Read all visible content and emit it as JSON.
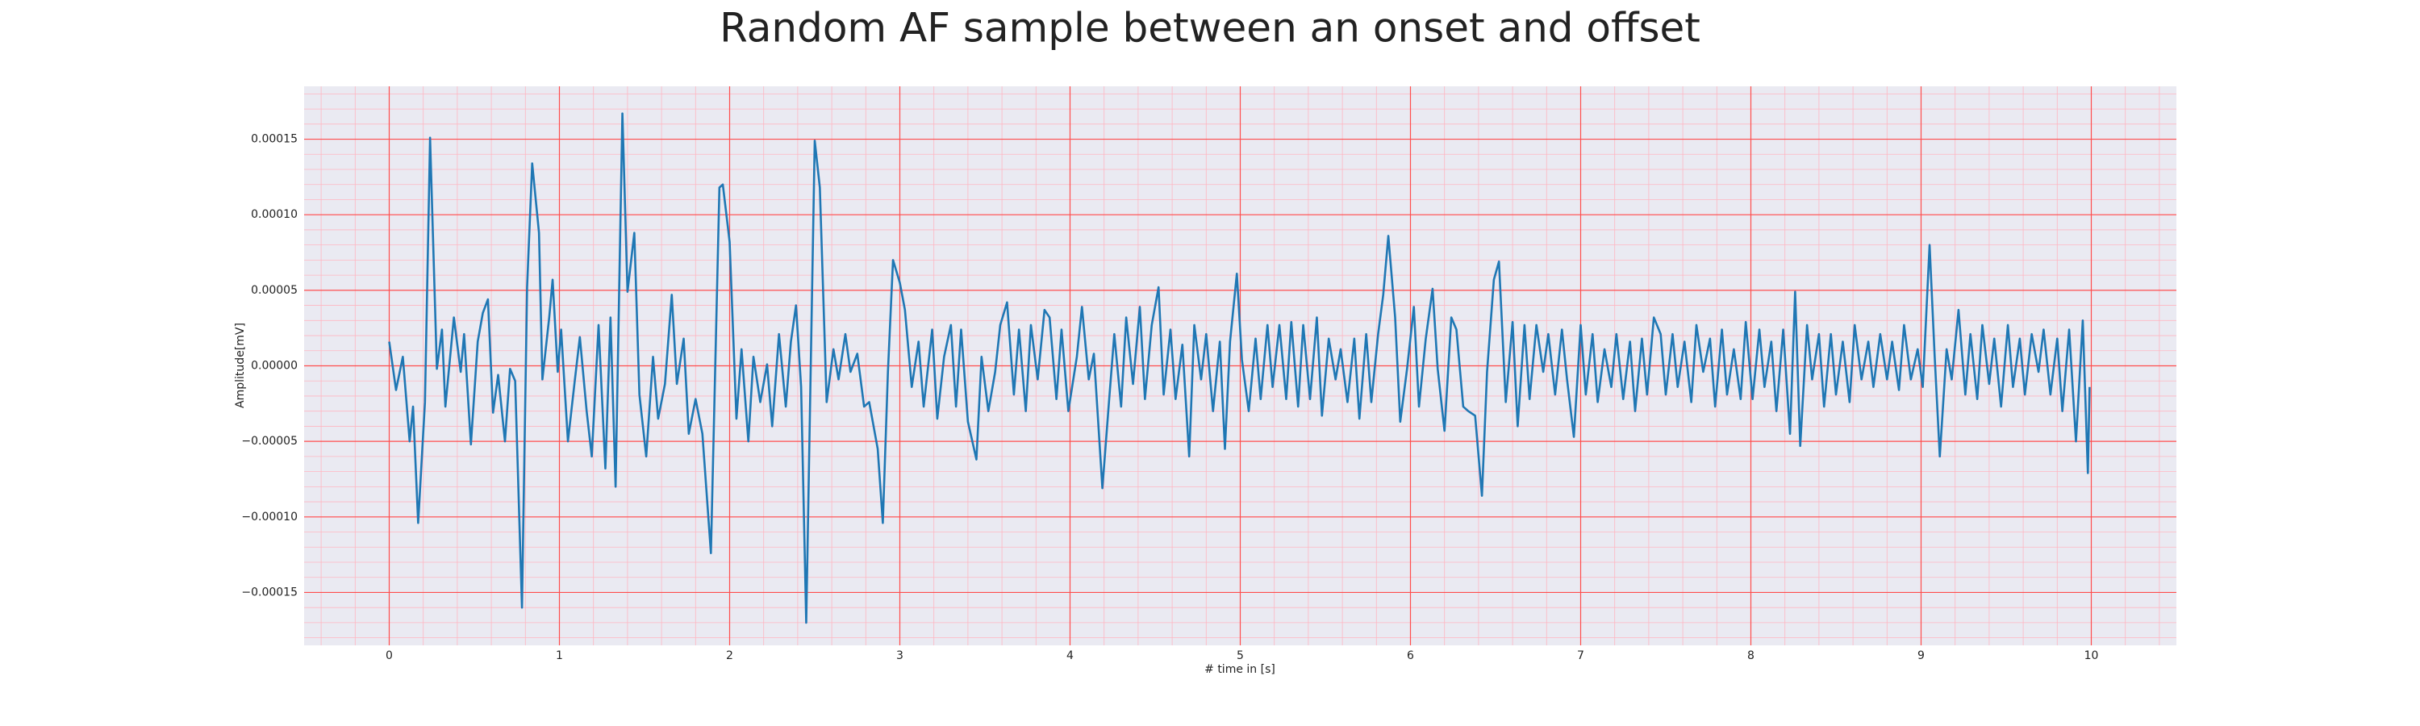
{
  "chart_data": {
    "type": "line",
    "title": "Random AF sample between an onset and offset",
    "xlabel": "# time in [s]",
    "ylabel": "Amplitude[mV]",
    "color": "#1f77b4",
    "grid": true,
    "minor_grid": {
      "x": 0.2,
      "y": 1e-05
    },
    "xlim": [
      -0.5,
      10.5
    ],
    "xticks": [
      0,
      1,
      2,
      3,
      4,
      5,
      6,
      7,
      8,
      9,
      10
    ],
    "ylim": [
      -0.000185,
      0.000185
    ],
    "yticks": [
      {
        "value": -0.00015,
        "label": "−0.00015"
      },
      {
        "value": -0.0001,
        "label": "−0.00010"
      },
      {
        "value": -5e-05,
        "label": "−0.00005"
      },
      {
        "value": 0,
        "label": "0.00000"
      },
      {
        "value": 5e-05,
        "label": "0.00005"
      },
      {
        "value": 0.0001,
        "label": "0.00010"
      },
      {
        "value": 0.00015,
        "label": "0.00015"
      }
    ],
    "x": [
      0,
      0.04,
      0.08,
      0.12,
      0.14,
      0.17,
      0.21,
      0.24,
      0.28,
      0.31,
      0.33,
      0.38,
      0.42,
      0.44,
      0.48,
      0.52,
      0.55,
      0.58,
      0.61,
      0.64,
      0.68,
      0.71,
      0.74,
      0.78,
      0.81,
      0.84,
      0.88,
      0.9,
      0.94,
      0.96,
      0.99,
      1.01,
      1.05,
      1.09,
      1.12,
      1.16,
      1.19,
      1.23,
      1.27,
      1.3,
      1.33,
      1.37,
      1.4,
      1.44,
      1.47,
      1.51,
      1.55,
      1.58,
      1.62,
      1.66,
      1.69,
      1.73,
      1.76,
      1.8,
      1.84,
      1.89,
      1.94,
      1.96,
      2.0,
      2.04,
      2.07,
      2.11,
      2.14,
      2.18,
      2.22,
      2.25,
      2.29,
      2.33,
      2.36,
      2.39,
      2.42,
      2.45,
      2.5,
      2.53,
      2.57,
      2.61,
      2.64,
      2.68,
      2.71,
      2.75,
      2.79,
      2.82,
      2.87,
      2.9,
      2.93,
      2.96,
      3.0,
      3.03,
      3.07,
      3.11,
      3.14,
      3.19,
      3.22,
      3.26,
      3.3,
      3.33,
      3.36,
      3.4,
      3.45,
      3.48,
      3.52,
      3.56,
      3.59,
      3.63,
      3.67,
      3.7,
      3.74,
      3.77,
      3.81,
      3.85,
      3.88,
      3.92,
      3.95,
      3.99,
      4.04,
      4.07,
      4.11,
      4.14,
      4.19,
      4.23,
      4.26,
      4.3,
      4.33,
      4.37,
      4.41,
      4.44,
      4.48,
      4.52,
      4.55,
      4.59,
      4.62,
      4.66,
      4.7,
      4.73,
      4.77,
      4.8,
      4.84,
      4.88,
      4.91,
      4.94,
      4.98,
      5.01,
      5.05,
      5.09,
      5.12,
      5.16,
      5.19,
      5.23,
      5.27,
      5.3,
      5.34,
      5.37,
      5.41,
      5.45,
      5.48,
      5.52,
      5.56,
      5.59,
      5.63,
      5.67,
      5.7,
      5.74,
      5.77,
      5.81,
      5.84,
      5.87,
      5.91,
      5.94,
      5.98,
      6.02,
      6.05,
      6.09,
      6.13,
      6.16,
      6.2,
      6.24,
      6.27,
      6.31,
      6.34,
      6.38,
      6.42,
      6.45,
      6.49,
      6.52,
      6.56,
      6.6,
      6.63,
      6.67,
      6.7,
      6.74,
      6.78,
      6.81,
      6.85,
      6.89,
      6.92,
      6.96,
      7.0,
      7.03,
      7.07,
      7.1,
      7.14,
      7.18,
      7.21,
      7.25,
      7.29,
      7.32,
      7.36,
      7.39,
      7.43,
      7.47,
      7.5,
      7.54,
      7.57,
      7.61,
      7.65,
      7.68,
      7.72,
      7.76,
      7.79,
      7.83,
      7.86,
      7.9,
      7.94,
      7.97,
      8.01,
      8.05,
      8.08,
      8.12,
      8.15,
      8.19,
      8.23,
      8.26,
      8.29,
      8.33,
      8.36,
      8.4,
      8.43,
      8.47,
      8.5,
      8.54,
      8.58,
      8.61,
      8.65,
      8.69,
      8.72,
      8.76,
      8.8,
      8.83,
      8.87,
      8.9,
      8.94,
      8.98,
      9.01,
      9.05,
      9.08,
      9.11,
      9.15,
      9.18,
      9.22,
      9.26,
      9.29,
      9.33,
      9.36,
      9.4,
      9.43,
      9.47,
      9.51,
      9.54,
      9.58,
      9.61,
      9.65,
      9.69,
      9.72,
      9.76,
      9.8,
      9.83,
      9.87,
      9.91,
      9.95,
      9.98,
      9.99
    ],
    "values": [
      1.6e-05,
      -1.6e-05,
      6e-06,
      -5e-05,
      -2.7e-05,
      -0.000104,
      -2.4e-05,
      0.000151,
      -2e-06,
      2.4e-05,
      -2.7e-05,
      3.2e-05,
      -4e-06,
      2.1e-05,
      -5.2e-05,
      1.6e-05,
      3.5e-05,
      4.4e-05,
      -3.1e-05,
      -6e-06,
      -5e-05,
      -2e-06,
      -1e-05,
      -0.00016,
      5.2e-05,
      0.000134,
      8.8e-05,
      -9e-06,
      3.2e-05,
      5.7e-05,
      -4e-06,
      2.4e-05,
      -5e-05,
      -1e-05,
      1.9e-05,
      -3e-05,
      -6e-05,
      2.7e-05,
      -6.8e-05,
      3.2e-05,
      -8e-05,
      0.000167,
      4.9e-05,
      8.8e-05,
      -1.9e-05,
      -6e-05,
      6e-06,
      -3.5e-05,
      -1.2e-05,
      4.7e-05,
      -1.2e-05,
      1.8e-05,
      -4.5e-05,
      -2.2e-05,
      -4.5e-05,
      -0.000124,
      0.000118,
      0.00012,
      8.2e-05,
      -3.5e-05,
      1.1e-05,
      -5e-05,
      6e-06,
      -2.4e-05,
      1e-06,
      -4e-05,
      2.1e-05,
      -2.7e-05,
      1.6e-05,
      4e-05,
      -1.4e-05,
      -0.00017,
      0.000149,
      0.000118,
      -2.4e-05,
      1.1e-05,
      -9e-06,
      2.1e-05,
      -4e-06,
      8e-06,
      -2.7e-05,
      -2.4e-05,
      -5.5e-05,
      -0.000104,
      -4e-06,
      7e-05,
      5.5e-05,
      3.7e-05,
      -1.4e-05,
      1.6e-05,
      -2.7e-05,
      2.4e-05,
      -3.5e-05,
      6e-06,
      2.7e-05,
      -2.7e-05,
      2.4e-05,
      -3.7e-05,
      -6.2e-05,
      6e-06,
      -3e-05,
      -4e-06,
      2.7e-05,
      4.2e-05,
      -1.9e-05,
      2.4e-05,
      -3e-05,
      2.7e-05,
      -9e-06,
      3.7e-05,
      3.2e-05,
      -2.2e-05,
      2.4e-05,
      -3e-05,
      6e-06,
      3.9e-05,
      -9e-06,
      8e-06,
      -8.1e-05,
      -2.2e-05,
      2.1e-05,
      -2.7e-05,
      3.2e-05,
      -1.2e-05,
      3.9e-05,
      -2.2e-05,
      2.7e-05,
      5.2e-05,
      -1.9e-05,
      2.4e-05,
      -2.2e-05,
      1.4e-05,
      -6e-05,
      2.7e-05,
      -9e-06,
      2.1e-05,
      -3e-05,
      1.6e-05,
      -5.5e-05,
      1.6e-05,
      6.1e-05,
      4e-06,
      -3e-05,
      1.8e-05,
      -2.2e-05,
      2.7e-05,
      -1.4e-05,
      2.7e-05,
      -2.2e-05,
      2.9e-05,
      -2.7e-05,
      2.7e-05,
      -2.2e-05,
      3.2e-05,
      -3.3e-05,
      1.8e-05,
      -9e-06,
      1.1e-05,
      -2.4e-05,
      1.8e-05,
      -3.5e-05,
      2.1e-05,
      -2.4e-05,
      2.1e-05,
      4.7e-05,
      8.6e-05,
      3.2e-05,
      -3.7e-05,
      -2e-06,
      3.9e-05,
      -2.7e-05,
      1.8e-05,
      5.1e-05,
      -2e-06,
      -4.3e-05,
      3.2e-05,
      2.4e-05,
      -2.7e-05,
      -3e-05,
      -3.3e-05,
      -8.6e-05,
      -4e-06,
      5.7e-05,
      6.9e-05,
      -2.4e-05,
      2.9e-05,
      -4e-05,
      2.7e-05,
      -2.2e-05,
      2.7e-05,
      -4e-06,
      2.1e-05,
      -1.9e-05,
      2.4e-05,
      -9e-06,
      -4.7e-05,
      2.7e-05,
      -1.9e-05,
      2.1e-05,
      -2.4e-05,
      1.1e-05,
      -1.4e-05,
      2.1e-05,
      -2.2e-05,
      1.6e-05,
      -3e-05,
      1.8e-05,
      -1.9e-05,
      3.2e-05,
      2.1e-05,
      -1.9e-05,
      2.1e-05,
      -1.4e-05,
      1.6e-05,
      -2.4e-05,
      2.7e-05,
      -4e-06,
      1.8e-05,
      -2.7e-05,
      2.4e-05,
      -1.9e-05,
      1.1e-05,
      -2.2e-05,
      2.9e-05,
      -2.2e-05,
      2.4e-05,
      -1.4e-05,
      1.6e-05,
      -3e-05,
      2.4e-05,
      -4.5e-05,
      4.9e-05,
      -5.3e-05,
      2.7e-05,
      -9e-06,
      2.1e-05,
      -2.7e-05,
      2.1e-05,
      -1.9e-05,
      1.6e-05,
      -2.4e-05,
      2.7e-05,
      -9e-06,
      1.6e-05,
      -1.4e-05,
      2.1e-05,
      -9e-06,
      1.6e-05,
      -1.6e-05,
      2.7e-05,
      -9e-06,
      1.1e-05,
      -1.4e-05,
      8e-05,
      6e-06,
      -6e-05,
      1.1e-05,
      -9e-06,
      3.7e-05,
      -1.9e-05,
      2.1e-05,
      -2.2e-05,
      2.7e-05,
      -1.2e-05,
      1.8e-05,
      -2.7e-05,
      2.7e-05,
      -1.4e-05,
      1.8e-05,
      -1.9e-05,
      2.1e-05,
      -4e-06,
      2.4e-05,
      -1.9e-05,
      1.8e-05,
      -3e-05,
      2.4e-05,
      -5e-05,
      3e-05,
      -7.1e-05,
      -1.4e-05
    ]
  }
}
